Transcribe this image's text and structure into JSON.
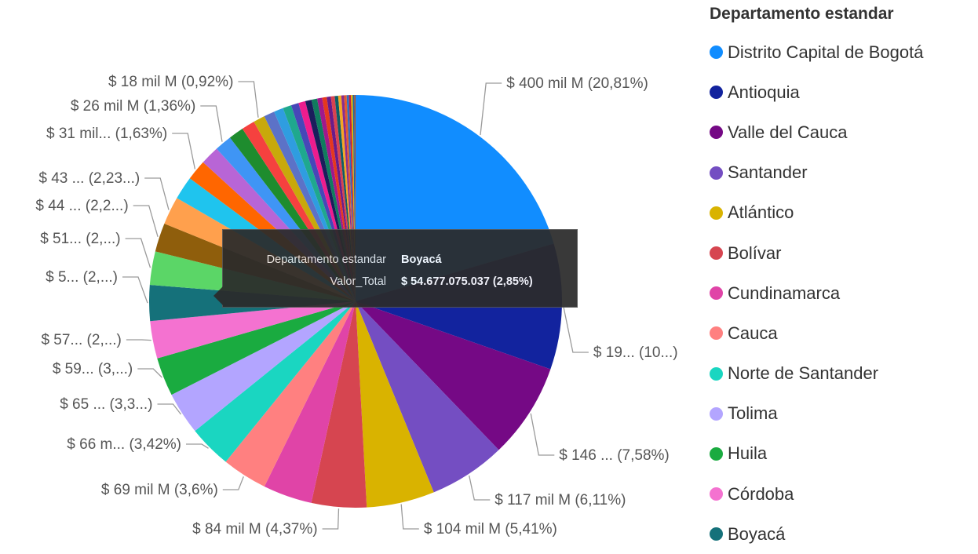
{
  "chart_data": {
    "type": "pie",
    "legend_title": "Departamento estandar",
    "legend_position": "right",
    "legend": [
      {
        "name": "Distrito Capital de Bogotá",
        "color": "#118DFF"
      },
      {
        "name": "Antioquia",
        "color": "#12239E"
      },
      {
        "name": "Valle del Cauca",
        "color": "#750985"
      },
      {
        "name": "Santander",
        "color": "#744EC2"
      },
      {
        "name": "Atlántico",
        "color": "#D9B300"
      },
      {
        "name": "Bolívar",
        "color": "#D64550"
      },
      {
        "name": "Cundinamarca",
        "color": "#E044A7"
      },
      {
        "name": "Cauca",
        "color": "#FF8080"
      },
      {
        "name": "Norte de Santander",
        "color": "#1AD6C1"
      },
      {
        "name": "Tolima",
        "color": "#B3A5FF"
      },
      {
        "name": "Huila",
        "color": "#1AAB40"
      },
      {
        "name": "Córdoba",
        "color": "#F472D0"
      },
      {
        "name": "Boyacá",
        "color": "#15717A"
      }
    ],
    "slices": [
      {
        "value": 20.81,
        "color": "#118DFF",
        "label": "$ 400 mil M (20,81%)"
      },
      {
        "value": 10.0,
        "color": "#12239E",
        "label": "$ 19... (10...)"
      },
      {
        "value": 7.58,
        "color": "#750985",
        "label": "$ 146 ... (7,58%)"
      },
      {
        "value": 6.11,
        "color": "#744EC2",
        "label": "$ 117 mil M (6,11%)"
      },
      {
        "value": 5.41,
        "color": "#D9B300",
        "label": "$ 104 mil M (5,41%)"
      },
      {
        "value": 4.37,
        "color": "#D64550",
        "label": "$ 84 mil M (4,37%)"
      },
      {
        "value": 3.9,
        "color": "#E044A7",
        "label": ""
      },
      {
        "value": 3.6,
        "color": "#FF8080",
        "label": "$ 69 mil M (3,6%)"
      },
      {
        "value": 3.42,
        "color": "#1AD6C1",
        "label": "$ 66 m... (3,42%)"
      },
      {
        "value": 3.38,
        "color": "#B3A5FF",
        "label": "$ 65 ... (3,3...)"
      },
      {
        "value": 3.07,
        "color": "#1AAB40",
        "label": "$ 59... (3,...)"
      },
      {
        "value": 2.97,
        "color": "#F472D0",
        "label": "$ 57... (2,...)"
      },
      {
        "value": 2.85,
        "color": "#15717A",
        "label": "$ 5... (2,...)"
      },
      {
        "value": 2.66,
        "color": "#5BD667",
        "label": "$ 51... (2,...)"
      },
      {
        "value": 2.29,
        "color": "#8F5E0C",
        "label": "$ 44 ... (2,2...)"
      },
      {
        "value": 2.23,
        "color": "#FFA04D",
        "label": "$ 43 ... (2,23...)"
      },
      {
        "value": 1.85,
        "color": "#1FC4EE",
        "label": ""
      },
      {
        "value": 1.63,
        "color": "#FF6600",
        "label": "$ 31 mil... (1,63%)"
      },
      {
        "value": 1.5,
        "color": "#B865D6",
        "label": ""
      },
      {
        "value": 1.36,
        "color": "#3F95F5",
        "label": "$ 26 mil M (1,36%)"
      },
      {
        "value": 1.2,
        "color": "#1E8C2E",
        "label": ""
      },
      {
        "value": 1.05,
        "color": "#F5413F",
        "label": ""
      },
      {
        "value": 0.92,
        "color": "#C8A90B",
        "label": "$ 18 mil M (0,92%)"
      },
      {
        "value": 0.85,
        "color": "#5C72C7",
        "label": ""
      },
      {
        "value": 0.75,
        "color": "#2F9DE0",
        "label": ""
      },
      {
        "value": 0.68,
        "color": "#1FA88E",
        "label": ""
      },
      {
        "value": 0.6,
        "color": "#4747B8",
        "label": ""
      },
      {
        "value": 0.55,
        "color": "#EE1C8E",
        "label": ""
      },
      {
        "value": 0.5,
        "color": "#1B1D5C",
        "label": ""
      },
      {
        "value": 0.45,
        "color": "#107C5E",
        "label": ""
      },
      {
        "value": 0.4,
        "color": "#A0198C",
        "label": ""
      },
      {
        "value": 0.36,
        "color": "#E5381E",
        "label": ""
      },
      {
        "value": 0.33,
        "color": "#6A1B8A",
        "label": ""
      },
      {
        "value": 0.3,
        "color": "#D9434F",
        "label": ""
      },
      {
        "value": 0.27,
        "color": "#0E5E66",
        "label": ""
      },
      {
        "value": 0.25,
        "color": "#F5A623",
        "label": ""
      },
      {
        "value": 0.22,
        "color": "#8B2C8E",
        "label": ""
      },
      {
        "value": 0.2,
        "color": "#E35A2A",
        "label": ""
      },
      {
        "value": 0.18,
        "color": "#2E6FBF",
        "label": ""
      },
      {
        "value": 0.16,
        "color": "#C71C3B",
        "label": ""
      },
      {
        "value": 0.14,
        "color": "#D9B300",
        "label": ""
      },
      {
        "value": 0.12,
        "color": "#1A66A8",
        "label": ""
      },
      {
        "value": 0.1,
        "color": "#B34E2B",
        "label": ""
      }
    ],
    "tooltip": {
      "rows": [
        {
          "key": "Departamento estandar",
          "value": "Boyacá"
        },
        {
          "key": "Valor_Total",
          "value": "$ 54.677.075.037 (2,85%)"
        }
      ]
    }
  }
}
